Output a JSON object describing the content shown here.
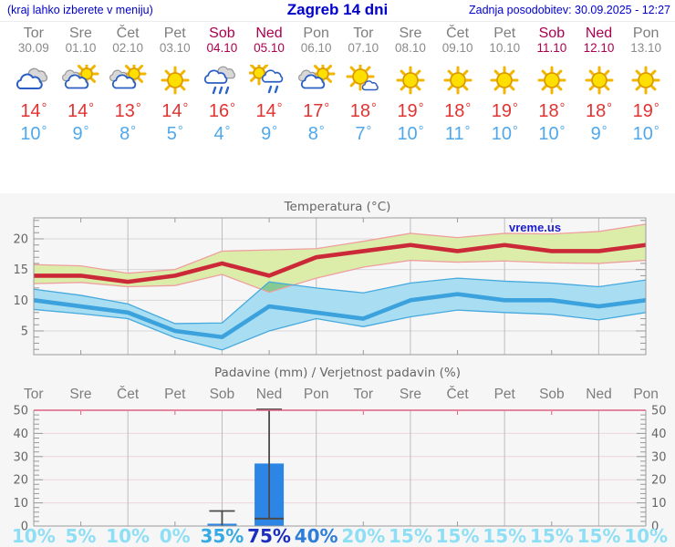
{
  "header": {
    "left_note": "(kraj lahko izberete v meniju)",
    "title": "Zagreb 14 dni",
    "updated": "Zadnja posodobitev: 30.09.2025 - 12:27"
  },
  "colors": {
    "header_blue": "#0000cc",
    "weekday_text": "#7d7d7d",
    "weekend_text": "#ab004f",
    "high_temp": "#e23333",
    "low_temp": "#4fa8ec"
  },
  "days": [
    {
      "name": "Tor",
      "date": "30.09",
      "weekend": false,
      "icon": "cloudy",
      "high": 14,
      "low": 10
    },
    {
      "name": "Sre",
      "date": "01.10",
      "weekend": false,
      "icon": "partly-cloudy",
      "high": 14,
      "low": 9
    },
    {
      "name": "Čet",
      "date": "02.10",
      "weekend": false,
      "icon": "partly-cloudy",
      "high": 13,
      "low": 8
    },
    {
      "name": "Pet",
      "date": "03.10",
      "weekend": false,
      "icon": "sunny",
      "high": 14,
      "low": 5
    },
    {
      "name": "Sob",
      "date": "04.10",
      "weekend": true,
      "icon": "rain",
      "high": 16,
      "low": 4
    },
    {
      "name": "Ned",
      "date": "05.10",
      "weekend": true,
      "icon": "sun-rain",
      "high": 14,
      "low": 9
    },
    {
      "name": "Pon",
      "date": "06.10",
      "weekend": false,
      "icon": "partly-cloudy",
      "high": 17,
      "low": 8
    },
    {
      "name": "Tor",
      "date": "07.10",
      "weekend": false,
      "icon": "mostly-sunny",
      "high": 18,
      "low": 7
    },
    {
      "name": "Sre",
      "date": "08.10",
      "weekend": false,
      "icon": "sunny",
      "high": 19,
      "low": 10
    },
    {
      "name": "Čet",
      "date": "09.10",
      "weekend": false,
      "icon": "sunny",
      "high": 18,
      "low": 11
    },
    {
      "name": "Pet",
      "date": "10.10",
      "weekend": false,
      "icon": "sunny",
      "high": 19,
      "low": 10
    },
    {
      "name": "Sob",
      "date": "11.10",
      "weekend": true,
      "icon": "sunny",
      "high": 18,
      "low": 10
    },
    {
      "name": "Ned",
      "date": "12.10",
      "weekend": true,
      "icon": "sunny",
      "high": 18,
      "low": 9
    },
    {
      "name": "Pon",
      "date": "13.10",
      "weekend": false,
      "icon": "sunny",
      "high": 19,
      "low": 10
    }
  ],
  "chart_data": [
    {
      "type": "line",
      "title": "Temperatura (°C)",
      "watermark": "vreme.us",
      "x_labels": [
        "Tor",
        "Sre",
        "Čet",
        "Pet",
        "Sob",
        "Ned",
        "Pon",
        "Tor",
        "Sre",
        "Čet",
        "Pet",
        "Sob",
        "Ned",
        "Pon"
      ],
      "ylim": [
        1,
        23.5
      ],
      "yticks": [
        5,
        10,
        15,
        20
      ],
      "grid": true,
      "legend_position": "none",
      "series": [
        {
          "name": "max-temp",
          "color": "#cb2838",
          "values": [
            14,
            14,
            13,
            14,
            16,
            14,
            17,
            18,
            19,
            18,
            19,
            18,
            18,
            19
          ]
        },
        {
          "name": "min-temp",
          "color": "#3ba2dd",
          "values": [
            10,
            9,
            8,
            5,
            4,
            9,
            8,
            7,
            10,
            11,
            10,
            10,
            9,
            10
          ]
        }
      ],
      "bands": [
        {
          "name": "max-range",
          "fill": "#dcedaa",
          "edge": "#ef9f9f",
          "upper": [
            15.8,
            15.6,
            14.4,
            15.0,
            18.0,
            18.2,
            18.4,
            19.6,
            20.9,
            20.2,
            20.9,
            20.8,
            21.2,
            22.4
          ],
          "lower": [
            12.7,
            12.9,
            12.2,
            12.4,
            14.2,
            11.3,
            13.6,
            15.4,
            16.5,
            16.2,
            16.4,
            16.1,
            16.0,
            16.5
          ]
        },
        {
          "name": "min-range",
          "fill": "#a9def2",
          "edge": "#45a9de",
          "upper": [
            11.8,
            10.8,
            9.4,
            6.2,
            6.3,
            13.0,
            12.0,
            11.2,
            12.8,
            13.6,
            13.1,
            12.8,
            12.2,
            13.3
          ],
          "lower": [
            8.5,
            7.8,
            7.0,
            3.9,
            1.9,
            5.0,
            7.0,
            5.7,
            7.3,
            8.4,
            8.0,
            7.7,
            6.8,
            8.0
          ]
        }
      ],
      "overlap_color": "#85c993",
      "axis_color": "#999999",
      "vgrid_color": "#bcbcbc",
      "hgrid_color": "#d8d8d8"
    },
    {
      "type": "bar",
      "title": "Padavine (mm) / Verjetnost padavin (%)",
      "categories": [
        "Tor",
        "Sre",
        "Čet",
        "Pet",
        "Sob",
        "Ned",
        "Pon",
        "Tor",
        "Sre",
        "Čet",
        "Pet",
        "Sob",
        "Ned",
        "Pon"
      ],
      "ylim": [
        0,
        50
      ],
      "yticks": [
        0,
        10,
        20,
        30,
        40,
        50
      ],
      "grid": true,
      "bar_color": "#2d85e5",
      "whisker_color": "#4a4a4a",
      "top_border_color": "#e06080",
      "hgrid_color": "#ecd6db",
      "vgrid_color": "#bcbcbc",
      "axis_color": "#999999",
      "bars": [
        {
          "day_index": 4,
          "label": "Sob 04.10",
          "value": 1,
          "whisker_low": 0,
          "whisker_high": 6.5
        },
        {
          "day_index": 5,
          "label": "Ned 05.10",
          "value": 27,
          "whisker_low": 3.2,
          "whisker_high": 50.4,
          "marker": 3.2
        }
      ],
      "probabilities": [
        10,
        5,
        10,
        0,
        35,
        75,
        40,
        20,
        15,
        15,
        15,
        15,
        15,
        10
      ],
      "prob_color_scale": [
        {
          "max": 20,
          "color": "#8edff5"
        },
        {
          "max": 39,
          "color": "#35aae4"
        },
        {
          "max": 60,
          "color": "#2e7ed8"
        },
        {
          "max": 100,
          "color": "#1b2ec0"
        }
      ]
    }
  ]
}
